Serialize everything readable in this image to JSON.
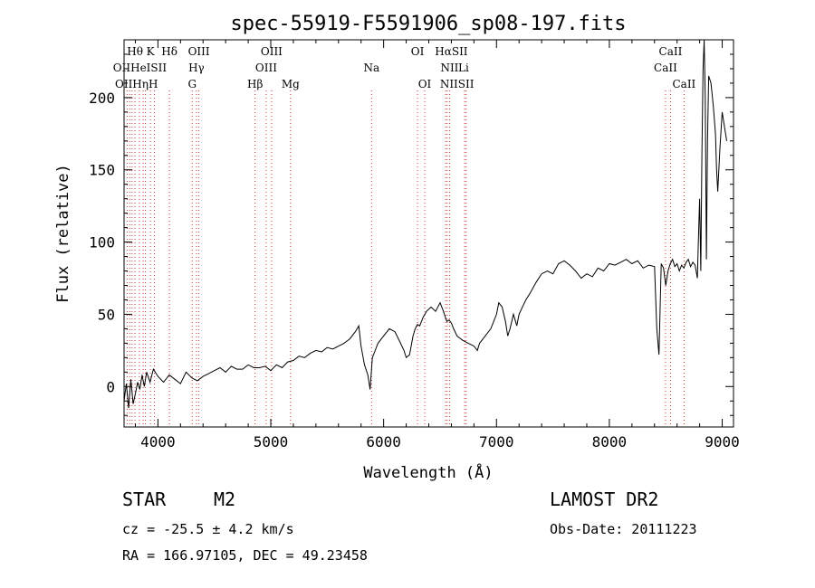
{
  "chart_data": {
    "type": "line",
    "title": "spec-55919-F5591906_sp08-197.fits",
    "xlabel": "Wavelength (Å)",
    "ylabel": "Flux (relative)",
    "xlim": [
      3700,
      9100
    ],
    "ylim": [
      -28,
      240
    ],
    "xticks": [
      4000,
      5000,
      6000,
      7000,
      8000,
      9000
    ],
    "yticks": [
      0,
      50,
      100,
      150,
      200
    ],
    "grid": false,
    "series": [
      {
        "x": [
          3700,
          3720,
          3740,
          3760,
          3780,
          3800,
          3820,
          3840,
          3860,
          3880,
          3900,
          3930,
          3960,
          4000,
          4050,
          4100,
          4150,
          4200,
          4250,
          4300,
          4350,
          4400,
          4450,
          4500,
          4550,
          4600,
          4650,
          4700,
          4750,
          4800,
          4850,
          4900,
          4950,
          5000,
          5050,
          5100,
          5150,
          5200,
          5250,
          5300,
          5350,
          5400,
          5450,
          5500,
          5550,
          5600,
          5650,
          5700,
          5750,
          5780,
          5800,
          5830,
          5860,
          5880,
          5900,
          5920,
          5950,
          6000,
          6050,
          6100,
          6150,
          6180,
          6200,
          6230,
          6260,
          6280,
          6300,
          6320,
          6350,
          6380,
          6420,
          6460,
          6500,
          6530,
          6560,
          6580,
          6600,
          6620,
          6650,
          6700,
          6750,
          6800,
          6830,
          6850,
          6900,
          6950,
          7000,
          7020,
          7050,
          7080,
          7100,
          7120,
          7150,
          7180,
          7200,
          7230,
          7260,
          7300,
          7350,
          7400,
          7450,
          7500,
          7550,
          7600,
          7650,
          7700,
          7750,
          7800,
          7850,
          7900,
          7950,
          8000,
          8050,
          8100,
          8150,
          8200,
          8250,
          8300,
          8350,
          8400,
          8420,
          8440,
          8460,
          8480,
          8500,
          8520,
          8540,
          8560,
          8580,
          8600,
          8620,
          8640,
          8660,
          8680,
          8700,
          8720,
          8740,
          8760,
          8780,
          8790,
          8800,
          8810,
          8820,
          8830,
          8840,
          8850,
          8860,
          8870,
          8880,
          8900,
          8920,
          8940,
          8950,
          8960,
          8980,
          9000,
          9040
        ],
        "y": [
          -10,
          2,
          -15,
          5,
          -12,
          -5,
          3,
          -2,
          8,
          0,
          10,
          3,
          12,
          7,
          3,
          8,
          5,
          2,
          10,
          6,
          4,
          7,
          9,
          11,
          13,
          10,
          14,
          12,
          12,
          15,
          13,
          13,
          14,
          11,
          15,
          13,
          17,
          18,
          21,
          20,
          23,
          25,
          24,
          27,
          26,
          28,
          30,
          33,
          38,
          42,
          28,
          15,
          8,
          -2,
          20,
          24,
          30,
          35,
          40,
          38,
          30,
          25,
          20,
          22,
          35,
          40,
          43,
          42,
          48,
          52,
          55,
          52,
          58,
          52,
          45,
          46,
          44,
          40,
          35,
          32,
          30,
          28,
          25,
          30,
          35,
          40,
          50,
          58,
          55,
          45,
          35,
          40,
          50,
          42,
          50,
          55,
          60,
          65,
          72,
          78,
          80,
          78,
          85,
          87,
          84,
          80,
          75,
          78,
          76,
          82,
          80,
          85,
          84,
          86,
          88,
          85,
          87,
          82,
          84,
          83,
          40,
          22,
          85,
          82,
          70,
          80,
          85,
          88,
          83,
          85,
          80,
          84,
          82,
          86,
          88,
          83,
          86,
          84,
          75,
          105,
          130,
          80,
          160,
          220,
          240,
          200,
          88,
          170,
          215,
          210,
          195,
          175,
          150,
          135,
          165,
          190,
          170
        ]
      }
    ],
    "line_labels_top": [
      {
        "text": "Hθ",
        "x": 3797
      },
      {
        "text": "K",
        "x": 3934
      },
      {
        "text": "Hδ",
        "x": 4102
      },
      {
        "text": "OIII",
        "x": 4363
      },
      {
        "text": "OIII",
        "x": 5007
      },
      {
        "text": "OI",
        "x": 6300
      },
      {
        "text": "HαSII",
        "x": 6600
      },
      {
        "text": "CaII",
        "x": 8542
      }
    ],
    "line_labels_mid": [
      {
        "text": "OIIHeISII",
        "x": 3840
      },
      {
        "text": "Hγ",
        "x": 4341
      },
      {
        "text": "OIII",
        "x": 4959
      },
      {
        "text": "Na",
        "x": 5893
      },
      {
        "text": "NII",
        "x": 6584
      },
      {
        "text": "Li",
        "x": 6708
      },
      {
        "text": "CaII",
        "x": 8498
      }
    ],
    "line_labels_low": [
      {
        "text": "OIIHηH",
        "x": 3810
      },
      {
        "text": "G",
        "x": 4304
      },
      {
        "text": "Hβ",
        "x": 4861
      },
      {
        "text": "Mg",
        "x": 5175
      },
      {
        "text": "OI",
        "x": 6364
      },
      {
        "text": "NIISII",
        "x": 6650
      },
      {
        "text": "CaII",
        "x": 8662
      }
    ],
    "line_markers": [
      3727,
      3750,
      3771,
      3797,
      3835,
      3869,
      3889,
      3934,
      3969,
      4102,
      4304,
      4341,
      4363,
      4861,
      4959,
      5007,
      5175,
      5893,
      6300,
      6364,
      6548,
      6563,
      6584,
      6717,
      6731,
      8498,
      8542,
      8662
    ]
  },
  "footer": {
    "object_type": "STAR",
    "subclass": "M2",
    "cz": "cz = -25.5 ± 4.2 km/s",
    "radec": "RA = 166.97105, DEC =  49.23458",
    "survey": "LAMOST DR2",
    "obs_date": "Obs-Date: 20111223"
  }
}
